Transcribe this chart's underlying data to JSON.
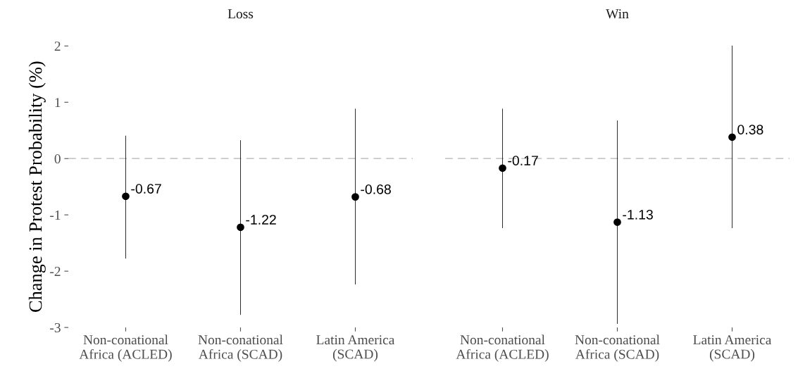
{
  "chart_data": [
    {
      "type": "scatter",
      "title": "Loss",
      "ylabel": "Change in Protest Probability (%)",
      "categories": [
        "Non-conational\nAfrica (ACLED)",
        "Non-conational\nAfrica (SCAD)",
        "Latin America\n(SCAD)"
      ],
      "values": [
        -0.67,
        -1.22,
        -0.68
      ],
      "errors": [
        [
          -1.77,
          0.4
        ],
        [
          -2.77,
          0.32
        ],
        [
          -2.23,
          0.88
        ]
      ],
      "color": "#000000",
      "marker": "circle",
      "data_labels": true,
      "ylim": [
        -3,
        2
      ],
      "yticks": [
        -3,
        -2,
        -1,
        0,
        1,
        2
      ],
      "grid": false,
      "ref_lines": [
        {
          "axis": "y",
          "value": 0,
          "color": "#c8c8c8",
          "line_style": "dashed"
        }
      ]
    },
    {
      "type": "scatter",
      "title": "Win",
      "categories": [
        "Non-conational\nAfrica (ACLED)",
        "Non-conational\nAfrica (SCAD)",
        "Latin America\n(SCAD)"
      ],
      "values": [
        -0.17,
        -1.13,
        0.38
      ],
      "errors": [
        [
          -1.23,
          0.88
        ],
        [
          -2.93,
          0.67
        ],
        [
          -1.23,
          2.0
        ]
      ],
      "color": "#000000",
      "marker": "circle",
      "data_labels": true,
      "ylim": [
        -3,
        2
      ],
      "yticks": [
        -3,
        -2,
        -1,
        0,
        1,
        2
      ],
      "grid": false,
      "tick_labels": "x",
      "ref_lines": [
        {
          "axis": "y",
          "value": 0,
          "color": "#c8c8c8",
          "line_style": "dashed"
        }
      ]
    }
  ]
}
